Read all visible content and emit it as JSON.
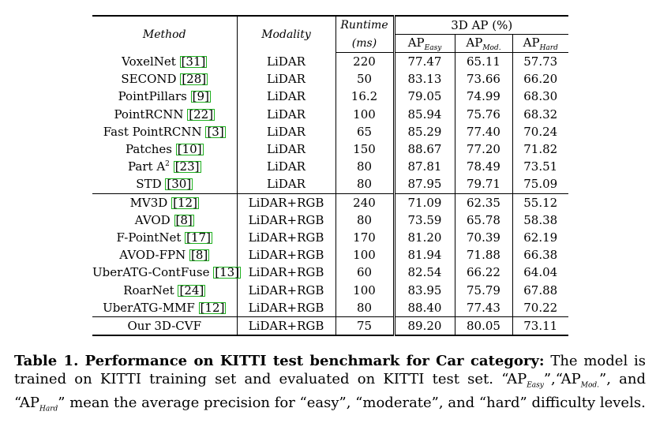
{
  "table": {
    "header": {
      "method": "Method",
      "modality": "Modality",
      "runtime_line1": "Runtime",
      "runtime_line2": "(ms)",
      "ap_group": "3D AP (%)",
      "ap_easy": "AP",
      "ap_easy_sub": "Easy",
      "ap_mod": "AP",
      "ap_mod_sub": "Mod.",
      "ap_hard": "AP",
      "ap_hard_sub": "Hard"
    },
    "lidar_rows": [
      {
        "method": "VoxelNet",
        "cite": "31",
        "modality": "LiDAR",
        "runtime": "220",
        "easy": "77.47",
        "mod": "65.11",
        "hard": "57.73"
      },
      {
        "method": "SECOND",
        "cite": "28",
        "modality": "LiDAR",
        "runtime": "50",
        "easy": "83.13",
        "mod": "73.66",
        "hard": "66.20"
      },
      {
        "method": "PointPillars",
        "cite": "9",
        "modality": "LiDAR",
        "runtime": "16.2",
        "easy": "79.05",
        "mod": "74.99",
        "hard": "68.30"
      },
      {
        "method": "PointRCNN",
        "cite": "22",
        "modality": "LiDAR",
        "runtime": "100",
        "easy": "85.94",
        "mod": "75.76",
        "hard": "68.32"
      },
      {
        "method": "Fast PointRCNN",
        "cite": "3",
        "modality": "LiDAR",
        "runtime": "65",
        "easy": "85.29",
        "mod": "77.40",
        "hard": "70.24"
      },
      {
        "method": "Patches",
        "cite": "10",
        "modality": "LiDAR",
        "runtime": "150",
        "easy": "88.67",
        "mod": "77.20",
        "hard": "71.82"
      },
      {
        "method": "Part A",
        "sup": "2",
        "cite": "23",
        "modality": "LiDAR",
        "runtime": "80",
        "easy": "87.81",
        "mod": "78.49",
        "hard": "73.51"
      },
      {
        "method": "STD",
        "cite": "30",
        "modality": "LiDAR",
        "runtime": "80",
        "easy": "87.95",
        "mod": "79.71",
        "hard": "75.09"
      }
    ],
    "fusion_rows": [
      {
        "method": "MV3D",
        "cite": "12",
        "modality": "LiDAR+RGB",
        "runtime": "240",
        "easy": "71.09",
        "mod": "62.35",
        "hard": "55.12"
      },
      {
        "method": "AVOD",
        "cite": "8",
        "modality": "LiDAR+RGB",
        "runtime": "80",
        "easy": "73.59",
        "mod": "65.78",
        "hard": "58.38"
      },
      {
        "method": "F-PointNet",
        "cite": "17",
        "modality": "LiDAR+RGB",
        "runtime": "170",
        "easy": "81.20",
        "mod": "70.39",
        "hard": "62.19"
      },
      {
        "method": "AVOD-FPN",
        "cite": "8",
        "modality": "LiDAR+RGB",
        "runtime": "100",
        "easy": "81.94",
        "mod": "71.88",
        "hard": "66.38"
      },
      {
        "method": "UberATG-ContFuse",
        "cite": "13",
        "modality": "LiDAR+RGB",
        "runtime": "60",
        "easy": "82.54",
        "mod": "66.22",
        "hard": "64.04"
      },
      {
        "method": "RoarNet",
        "cite": "24",
        "modality": "LiDAR+RGB",
        "runtime": "100",
        "easy": "83.95",
        "mod": "75.79",
        "hard": "67.88"
      },
      {
        "method": "UberATG-MMF",
        "cite": "12",
        "modality": "LiDAR+RGB",
        "runtime": "80",
        "easy": "88.40",
        "mod": "77.43",
        "hard": "70.22"
      }
    ],
    "ours": {
      "method": "Our 3D-CVF",
      "modality": "LiDAR+RGB",
      "runtime": "75",
      "easy": "89.20",
      "mod": "80.05",
      "hard": "73.11"
    }
  },
  "caption": {
    "lead": "Table 1. Performance on KITTI test benchmark for Car category:",
    "t1": " The model is trained on KITTI training set and evaluated on KITTI test set. “AP",
    "s1": "Easy",
    "t2": "”,“AP",
    "s2": "Mod.",
    "t3": "”, and “AP",
    "s3": "Hard",
    "t4": "” mean the average precision for “easy”, “moderate”, and “hard” difficulty levels."
  }
}
